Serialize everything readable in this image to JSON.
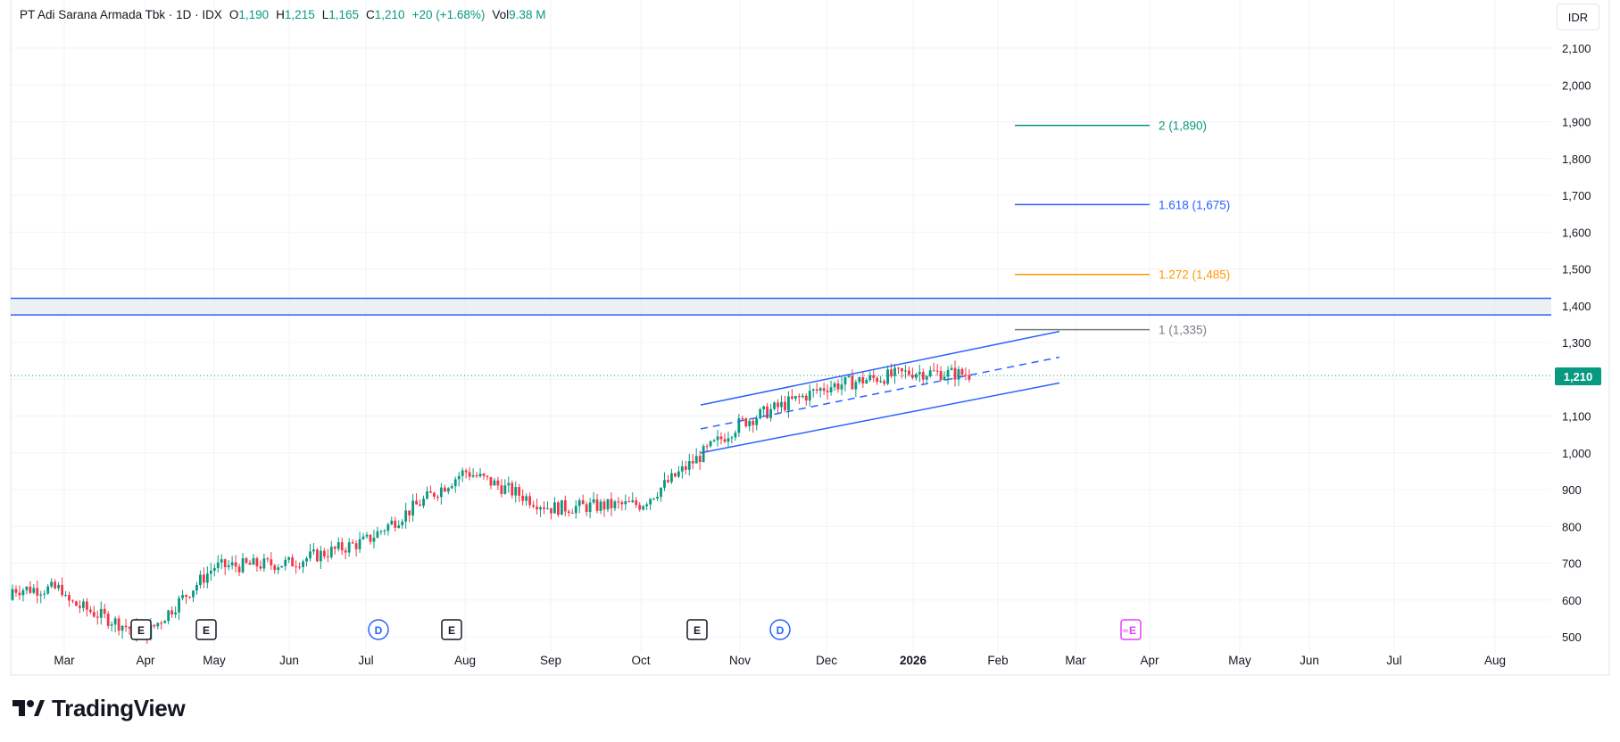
{
  "header": {
    "symbol": "PT Adi Sarana Armada Tbk · 1D · IDX",
    "open_label": "O",
    "open": "1,190",
    "high_label": "H",
    "high": "1,215",
    "low_label": "L",
    "low": "1,165",
    "close_label": "C",
    "close": "1,210",
    "change": "+20 (+1.68%)",
    "vol_label": "Vol",
    "volume": "9.38 M"
  },
  "currency_button": "IDR",
  "last_price_label": "1,210",
  "brand": "TradingView",
  "colors": {
    "up": "#089981",
    "down": "#f23645",
    "drawing_blue": "#2962ff",
    "fib_teal": "#089981",
    "fib_orange": "#ff9800",
    "fib_gray": "#787b86",
    "event_earnings": "#131722",
    "event_dividend": "#2962ff",
    "event_future": "#e040fb"
  },
  "chart_data": {
    "type": "candlestick",
    "y_ticks": [
      "2,100",
      "2,000",
      "1,900",
      "1,800",
      "1,700",
      "1,600",
      "1,500",
      "1,400",
      "1,300",
      "1,200",
      "1,100",
      "1,000",
      "900",
      "800",
      "700",
      "600",
      "500"
    ],
    "x_ticks": [
      "Mar",
      "Apr",
      "May",
      "Jun",
      "Jul",
      "Aug",
      "Sep",
      "Oct",
      "Nov",
      "Dec",
      "2026",
      "Feb",
      "Mar",
      "Apr",
      "May",
      "Jun",
      "Jul",
      "Aug"
    ],
    "ylim": [
      455,
      2150
    ],
    "last_price": 1210,
    "fibonacci_levels": [
      {
        "label": "2 (1,890)",
        "value": 1890,
        "color": "#089981"
      },
      {
        "label": "1.618 (1,675)",
        "value": 1675,
        "color": "#2962ff"
      },
      {
        "label": "1.272 (1,485)",
        "value": 1485,
        "color": "#ff9800"
      },
      {
        "label": "1 (1,335)",
        "value": 1335,
        "color": "#787b86"
      }
    ],
    "resistance_zone": [
      1375,
      1420
    ],
    "events": [
      {
        "type": "E",
        "month": "Apr"
      },
      {
        "type": "E",
        "month": "May"
      },
      {
        "type": "D",
        "month": "Jul"
      },
      {
        "type": "E",
        "month": "Aug"
      },
      {
        "type": "E",
        "month": "Nov"
      },
      {
        "type": "D",
        "month": "Nov"
      },
      {
        "type": "E",
        "month": "Apr",
        "future": true
      }
    ],
    "price_path_approx": [
      {
        "x": "Mar",
        "y": 600
      },
      {
        "x": "Apr",
        "y": 505
      },
      {
        "x": "May",
        "y": 690
      },
      {
        "x": "Jun",
        "y": 700
      },
      {
        "x": "Jul",
        "y": 760
      },
      {
        "x": "Aug",
        "y": 950
      },
      {
        "x": "Sep",
        "y": 850
      },
      {
        "x": "Oct",
        "y": 860
      },
      {
        "x": "Nov",
        "y": 1080
      },
      {
        "x": "Dec",
        "y": 1180
      },
      {
        "x": "2026",
        "y": 1220
      },
      {
        "x": "Feb",
        "y": 1210
      }
    ]
  }
}
